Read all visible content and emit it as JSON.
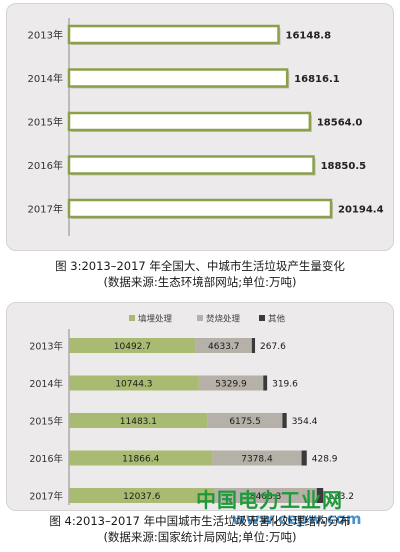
{
  "chart_data": [
    {
      "type": "bar",
      "orientation": "horizontal",
      "categories": [
        "2013年",
        "2014年",
        "2015年",
        "2016年",
        "2017年"
      ],
      "values": [
        16148.8,
        16816.1,
        18564.0,
        18850.5,
        20194.4
      ],
      "value_labels": [
        "16148.8",
        "16816.1",
        "18564.0",
        "18850.5",
        "20194.4"
      ],
      "title": "",
      "xlabel": "",
      "ylabel": "",
      "grid": false,
      "legend": "none",
      "colors": {
        "bar_fill": "#ffffff",
        "bar_border": "#8aa04a"
      }
    },
    {
      "type": "bar",
      "orientation": "horizontal",
      "stacked": true,
      "categories": [
        "2013年",
        "2014年",
        "2015年",
        "2016年",
        "2017年"
      ],
      "series": [
        {
          "name": "填埋处理",
          "values": [
            10492.7,
            10744.3,
            11483.1,
            11866.4,
            12037.6
          ],
          "labels": [
            "10492.7",
            "10744.3",
            "11483.1",
            "11866.4",
            "12037.6"
          ],
          "color": "#a9bb72"
        },
        {
          "name": "焚烧处理",
          "values": [
            4633.7,
            5329.9,
            6175.5,
            7378.4,
            8463.3
          ],
          "labels": [
            "4633.7",
            "5329.9",
            "6175.5",
            "7378.4",
            "8463.3"
          ],
          "color": "#b6b1a8"
        },
        {
          "name": "其他",
          "values": [
            267.6,
            319.6,
            354.4,
            428.9,
            533.2
          ],
          "labels": [
            "267.6",
            "319.6",
            "354.4",
            "428.9",
            "533.2"
          ],
          "color": "#3a3a3a"
        }
      ],
      "title": "",
      "xlabel": "",
      "ylabel": "",
      "grid": false,
      "legend": "top-center"
    }
  ],
  "captions": {
    "fig3_line1": "图 3:2013–2017 年全国大、中城市生活垃圾产生量变化",
    "fig3_line2": "(数据来源:生态环境部网站;单位:万吨)",
    "fig4_line1": "图 4:2013–2017 年中国城市生活垃圾无害化处理结构分布",
    "fig4_line2": "(数据来源:国家统计局网站;单位:万吨)"
  },
  "watermark": {
    "text": "中国电力工业网",
    "url": "www.cepw.com"
  }
}
